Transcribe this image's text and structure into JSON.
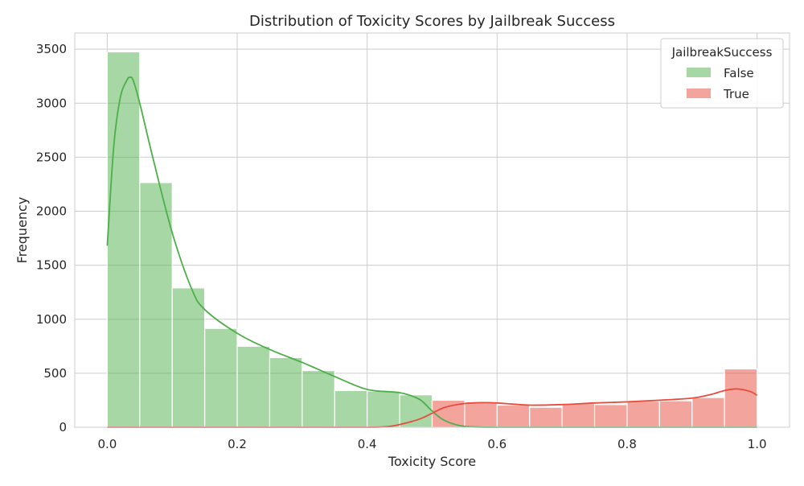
{
  "chart_data": {
    "type": "histogram",
    "title": "Distribution of Toxicity Scores by Jailbreak Success",
    "xlabel": "Toxicity Score",
    "ylabel": "Frequency",
    "xlim": [
      -0.05,
      1.05
    ],
    "ylim": [
      0,
      3650
    ],
    "xticks": [
      0.0,
      0.2,
      0.4,
      0.6,
      0.8,
      1.0
    ],
    "xtick_labels": [
      "0.0",
      "0.2",
      "0.4",
      "0.6",
      "0.8",
      "1.0"
    ],
    "yticks": [
      0,
      500,
      1000,
      1500,
      2000,
      2500,
      3000,
      3500
    ],
    "ytick_labels": [
      "0",
      "500",
      "1000",
      "1500",
      "2000",
      "2500",
      "3000",
      "3500"
    ],
    "grid": true,
    "legend": {
      "title": "JailbreakSuccess",
      "placement": "top-right"
    },
    "bin_edges": [
      0.0,
      0.05,
      0.1,
      0.15,
      0.2,
      0.25,
      0.3,
      0.35,
      0.4,
      0.45,
      0.5,
      0.55,
      0.6,
      0.65,
      0.7,
      0.75,
      0.8,
      0.85,
      0.9,
      0.95,
      1.0
    ],
    "series": [
      {
        "name": "False",
        "color": "#4daf4a",
        "values": [
          3475,
          2265,
          1290,
          915,
          750,
          645,
          525,
          340,
          335,
          300,
          0,
          0,
          0,
          0,
          0,
          0,
          0,
          0,
          0,
          0
        ],
        "kde": {
          "x": [
            0.0,
            0.01,
            0.02,
            0.03,
            0.035,
            0.04,
            0.05,
            0.07,
            0.1,
            0.13,
            0.15,
            0.2,
            0.25,
            0.3,
            0.35,
            0.4,
            0.45,
            0.48,
            0.5,
            0.52,
            0.55,
            0.6,
            0.7,
            0.8,
            0.9,
            1.0
          ],
          "y": [
            1680,
            2600,
            3050,
            3210,
            3240,
            3210,
            3000,
            2500,
            1800,
            1280,
            1090,
            870,
            720,
            600,
            470,
            350,
            320,
            260,
            150,
            60,
            8,
            0,
            0,
            0,
            0,
            0
          ]
        }
      },
      {
        "name": "True",
        "color": "#e74c3c",
        "values": [
          0,
          0,
          0,
          0,
          0,
          0,
          0,
          0,
          0,
          0,
          250,
          225,
          205,
          185,
          220,
          210,
          240,
          245,
          275,
          540
        ],
        "kde": {
          "x": [
            0.0,
            0.1,
            0.2,
            0.3,
            0.4,
            0.43,
            0.45,
            0.48,
            0.5,
            0.52,
            0.55,
            0.58,
            0.6,
            0.65,
            0.7,
            0.75,
            0.8,
            0.85,
            0.9,
            0.93,
            0.95,
            0.97,
            0.99,
            1.0
          ],
          "y": [
            0,
            0,
            0,
            0,
            0,
            5,
            25,
            75,
            130,
            185,
            220,
            228,
            225,
            205,
            210,
            225,
            235,
            250,
            270,
            305,
            340,
            355,
            330,
            295
          ]
        }
      }
    ]
  }
}
